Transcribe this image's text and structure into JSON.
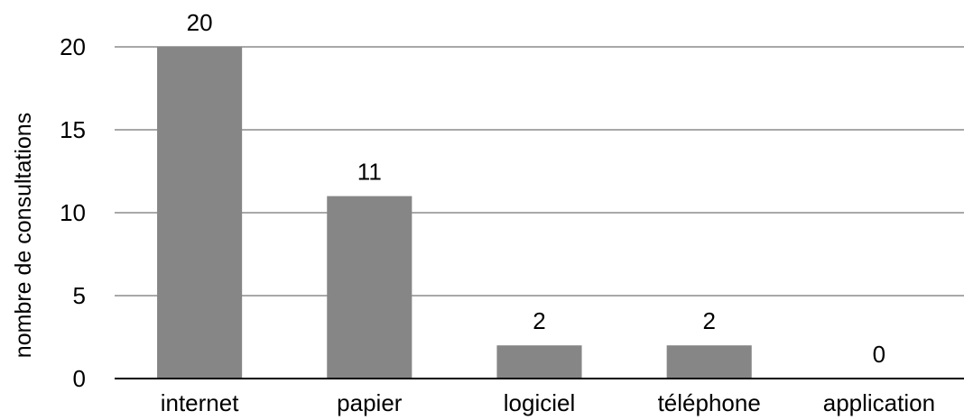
{
  "chart_data": {
    "type": "bar",
    "title": "",
    "xlabel": "",
    "ylabel": "nombre de consultations",
    "categories": [
      "internet",
      "papier",
      "logiciel",
      "téléphone",
      "application"
    ],
    "values": [
      20,
      11,
      2,
      2,
      0
    ],
    "data_labels": [
      "20",
      "11",
      "2",
      "2",
      "0"
    ],
    "ylim": [
      0,
      20
    ],
    "yticks": [
      0,
      5,
      10,
      15,
      20
    ],
    "grid": true,
    "legend": "none",
    "colors": {
      "bar": "#858685",
      "grid": "#a8a8a8",
      "axis": "#000000"
    }
  }
}
